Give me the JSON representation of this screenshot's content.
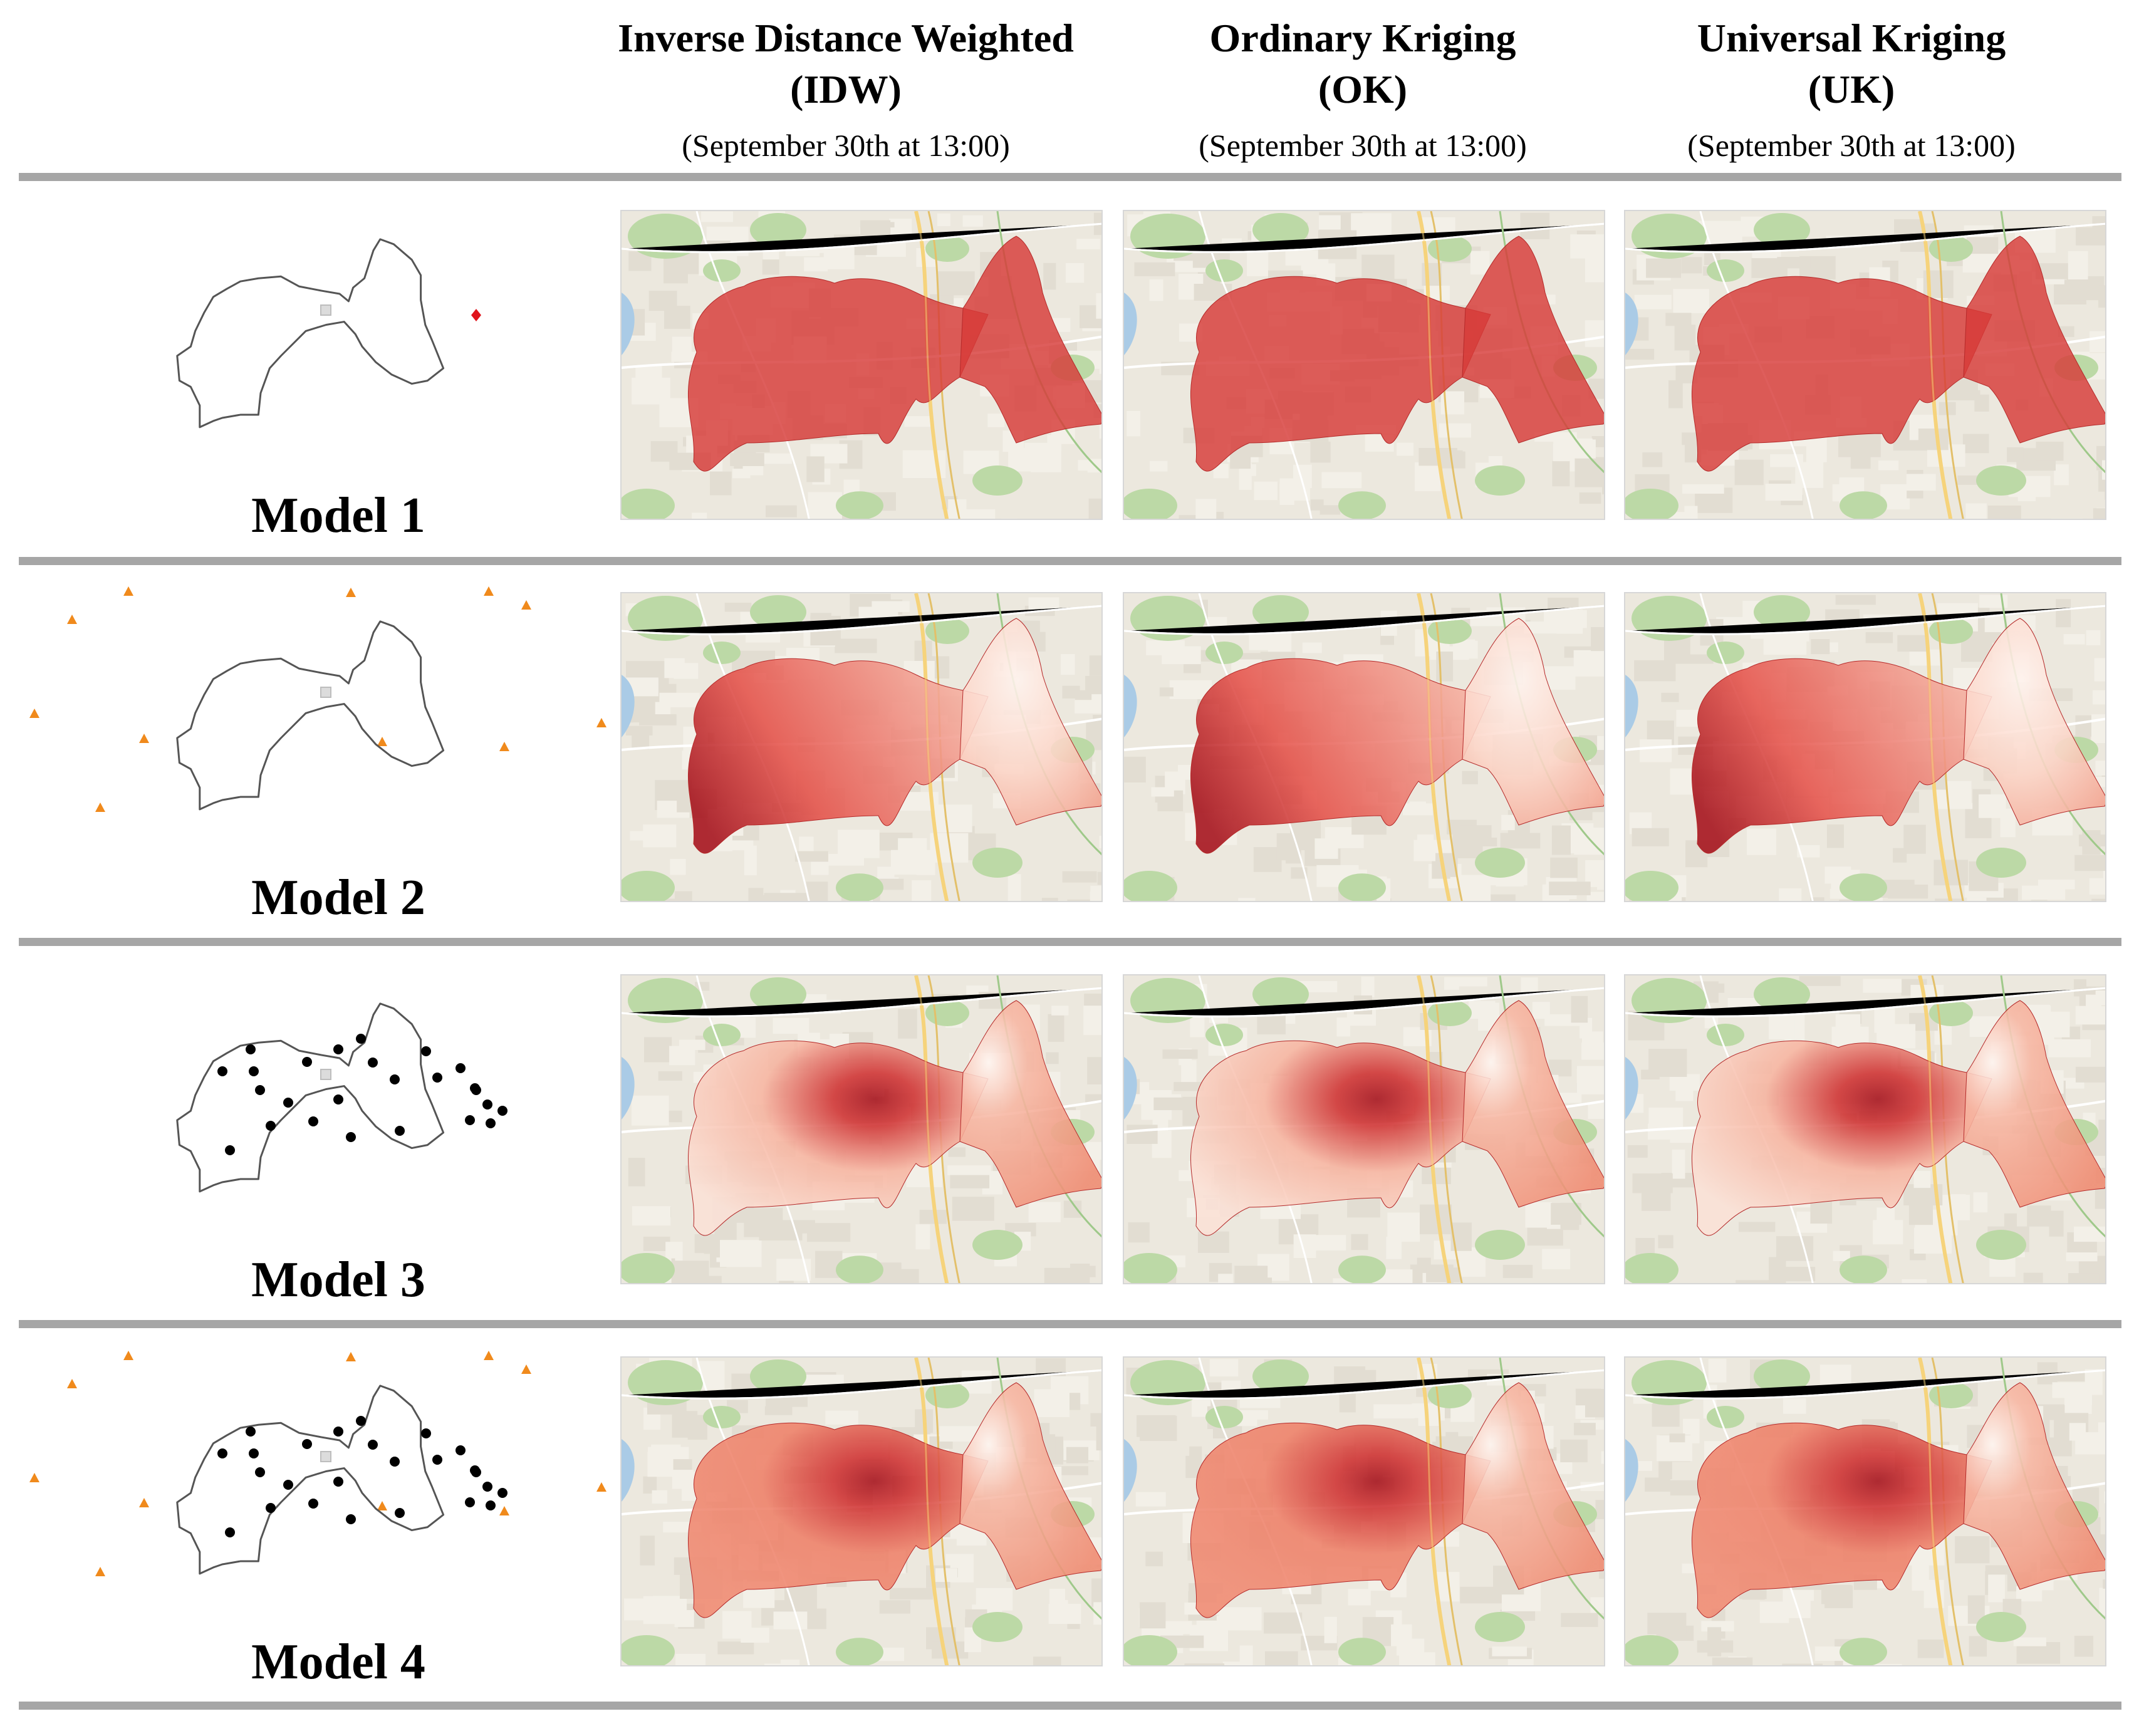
{
  "columns": [
    {
      "title_line1": "Inverse Distance Weighted",
      "title_line2": "(IDW)",
      "subtitle": "(September 30th at 13:00)"
    },
    {
      "title_line1": "Ordinary Kriging",
      "title_line2": "(OK)",
      "subtitle": "(September 30th at 13:00)"
    },
    {
      "title_line1": "Universal Kriging",
      "title_line2": "(UK)",
      "subtitle": "(September 30th at 13:00)"
    }
  ],
  "rows": [
    {
      "label": "Model 1",
      "outside_stations": false,
      "inside_sensors": false,
      "highlight_point": true,
      "style": "uniform"
    },
    {
      "label": "Model 2",
      "outside_stations": true,
      "inside_sensors": false,
      "highlight_point": false,
      "style": "gradient-west"
    },
    {
      "label": "Model 3",
      "outside_stations": false,
      "inside_sensors": true,
      "highlight_point": false,
      "style": "hotspot-light"
    },
    {
      "label": "Model 4",
      "outside_stations": true,
      "inside_sensors": true,
      "highlight_point": false,
      "style": "hotspot-dense"
    }
  ],
  "colors": {
    "rule": "#a6a6a6",
    "district_dark": "#a5101a",
    "district_mid": "#d73a38",
    "district_light": "#fbe1d6",
    "station_marker": "#f08a1c",
    "sensor_marker": "#000000",
    "center_marker": "#bdbdbd",
    "highlight_marker": "#e0141c"
  }
}
